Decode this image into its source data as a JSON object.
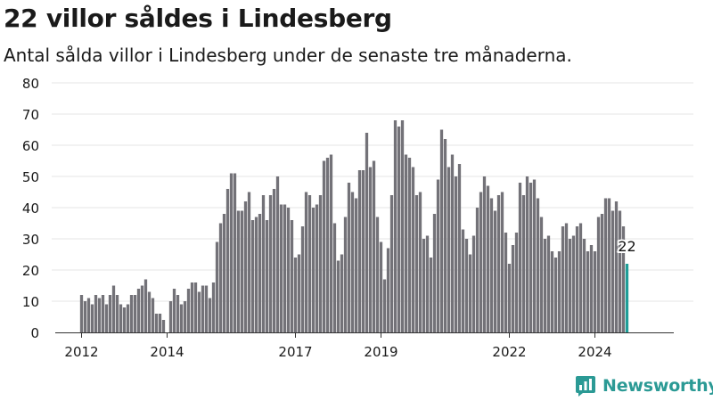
{
  "title": "22 villor såldes i Lindesberg",
  "subtitle": "Antal sålda villor i Lindesberg under de senaste tre månaderna.",
  "brand": {
    "name": "Newsworthy",
    "icon": "newsworthy-logo-icon"
  },
  "colors": {
    "bar": "#737278",
    "highlight": "#1f9e98",
    "grid": "#e4e4e4",
    "axis": "#333333",
    "text": "#1a1a1a"
  },
  "chart_data": {
    "type": "bar",
    "title": "22 villor såldes i Lindesberg",
    "xlabel": "",
    "ylabel": "",
    "ylim": [
      0,
      80
    ],
    "yticks": [
      0,
      10,
      20,
      30,
      40,
      50,
      60,
      70,
      80
    ],
    "grid": true,
    "x_start": "2012-01",
    "x_end": "2024-10",
    "xticks": [
      {
        "label": "2012",
        "at": "2012-01"
      },
      {
        "label": "2014",
        "at": "2014-01"
      },
      {
        "label": "2017",
        "at": "2017-01"
      },
      {
        "label": "2019",
        "at": "2019-01"
      },
      {
        "label": "2022",
        "at": "2022-01"
      },
      {
        "label": "2024",
        "at": "2024-01"
      }
    ],
    "highlight": {
      "month": "2024-10",
      "value": 22,
      "label": "22"
    },
    "values": [
      12,
      10,
      11,
      9,
      12,
      11,
      12,
      9,
      12,
      15,
      12,
      9,
      8,
      9,
      12,
      12,
      14,
      15,
      17,
      13,
      11,
      6,
      6,
      4,
      null,
      10,
      14,
      12,
      9,
      10,
      14,
      16,
      16,
      13,
      15,
      15,
      11,
      16,
      29,
      35,
      38,
      46,
      51,
      51,
      39,
      39,
      42,
      45,
      36,
      37,
      38,
      44,
      36,
      44,
      46,
      50,
      41,
      41,
      40,
      36,
      24,
      25,
      34,
      45,
      44,
      40,
      41,
      44,
      55,
      56,
      57,
      35,
      23,
      25,
      37,
      48,
      45,
      43,
      52,
      52,
      64,
      53,
      55,
      37,
      29,
      17,
      27,
      44,
      68,
      66,
      68,
      57,
      56,
      53,
      44,
      45,
      30,
      31,
      24,
      38,
      49,
      65,
      62,
      53,
      57,
      50,
      54,
      33,
      30,
      25,
      31,
      40,
      45,
      50,
      47,
      43,
      39,
      44,
      45,
      32,
      22,
      28,
      32,
      48,
      44,
      50,
      48,
      49,
      43,
      37,
      30,
      31,
      26,
      24,
      26,
      34,
      35,
      30,
      31,
      34,
      35,
      30,
      26,
      28,
      26,
      37,
      38,
      43,
      43,
      39,
      42,
      39,
      34,
      22
    ]
  }
}
